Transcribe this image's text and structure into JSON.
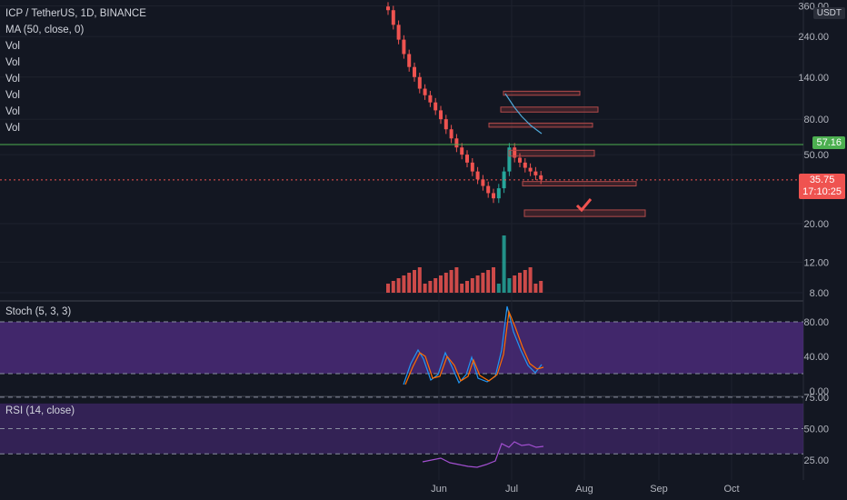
{
  "symbol": {
    "title": "ICP / TetherUS, 1D, BINANCE"
  },
  "legend": {
    "ma": "MA (50, close, 0)",
    "vol": [
      "Vol",
      "Vol",
      "Vol",
      "Vol",
      "Vol",
      "Vol"
    ]
  },
  "price_axis": {
    "currency": "USDT",
    "ticks": [
      "360.00",
      "240.00",
      "140.00",
      "80.00",
      "50.00",
      "20.00",
      "12.00",
      "8.00"
    ],
    "line_level": "57.16",
    "last_price": "35.75",
    "countdown": "17:10:25"
  },
  "stoch": {
    "title": "Stoch (5, 3, 3)",
    "ticks": [
      "80.00",
      "40.00",
      "0.00"
    ]
  },
  "rsi": {
    "title": "RSI (14, close)",
    "ticks": [
      "75.00",
      "50.00",
      "25.00"
    ]
  },
  "time_axis": {
    "labels": [
      "Jun",
      "Jul",
      "Aug",
      "Sep",
      "Oct"
    ]
  },
  "colors": {
    "background": "#131722",
    "up": "#26a69a",
    "down": "#ef5350",
    "level_line": "#4caf50",
    "oscillator_band": "#4a2a78"
  },
  "chart_data": {
    "type": "candlestick",
    "price_scale": "log",
    "ylim": [
      8,
      380
    ],
    "horizontal_level": 57.16,
    "last_price": 35.75,
    "candles_close_trend": [
      340,
      280,
      230,
      190,
      160,
      140,
      120,
      110,
      100,
      90,
      80,
      70,
      62,
      55,
      50,
      45,
      40,
      36,
      33,
      30,
      28,
      32,
      40,
      55,
      48,
      45,
      42,
      40,
      38,
      36
    ],
    "zones": [
      {
        "from": 110,
        "to": 116
      },
      {
        "from": 88,
        "to": 94
      },
      {
        "from": 72,
        "to": 76
      },
      {
        "from": 49,
        "to": 53
      },
      {
        "from": 33,
        "to": 35
      },
      {
        "from": 22,
        "to": 24
      }
    ],
    "stoch_ylim": [
      0,
      100
    ],
    "stoch_bands": [
      20,
      80
    ],
    "rsi_ylim": [
      0,
      100
    ],
    "rsi_bands": [
      30,
      70
    ]
  }
}
